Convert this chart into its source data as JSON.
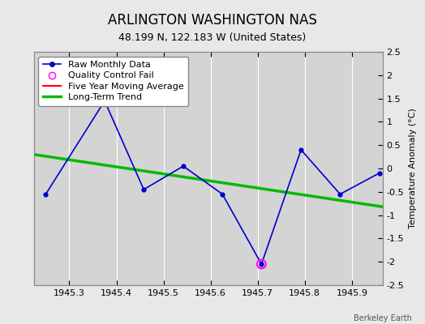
{
  "title": "ARLINGTON WASHINGTON NAS",
  "subtitle": "48.199 N, 122.183 W (United States)",
  "ylabel_right": "Temperature Anomaly (°C)",
  "watermark": "Berkeley Earth",
  "xlim": [
    1945.225,
    1945.965
  ],
  "ylim": [
    -2.5,
    2.5
  ],
  "xticks": [
    1945.3,
    1945.4,
    1945.5,
    1945.6,
    1945.7,
    1945.8,
    1945.9
  ],
  "yticks": [
    -2.5,
    -2.0,
    -1.5,
    -1.0,
    -0.5,
    0.0,
    0.5,
    1.0,
    1.5,
    2.0,
    2.5
  ],
  "ytick_labels": [
    "-2.5",
    "-2",
    "-1.5",
    "-1",
    "-0.5",
    "0",
    "0.5",
    "1",
    "1.5",
    "2",
    "2.5"
  ],
  "raw_x": [
    1945.25,
    1945.375,
    1945.458,
    1945.542,
    1945.625,
    1945.708,
    1945.792,
    1945.875,
    1945.958
  ],
  "raw_y": [
    -0.55,
    1.45,
    -0.45,
    0.05,
    -0.55,
    -2.05,
    0.4,
    -0.55,
    -0.1
  ],
  "qc_fail_x": [
    1945.708
  ],
  "qc_fail_y": [
    -2.05
  ],
  "trend_x": [
    1945.225,
    1945.965
  ],
  "trend_y": [
    0.3,
    -0.82
  ],
  "raw_color": "#0000cc",
  "trend_color": "#00bb00",
  "moving_avg_color": "#ff0000",
  "qc_color": "#ff00ff",
  "fig_bg_color": "#e8e8e8",
  "plot_bg_color": "#d4d4d4",
  "grid_color": "#ffffff",
  "title_fontsize": 12,
  "subtitle_fontsize": 9,
  "tick_fontsize": 8,
  "legend_fontsize": 8,
  "ylabel_fontsize": 8
}
